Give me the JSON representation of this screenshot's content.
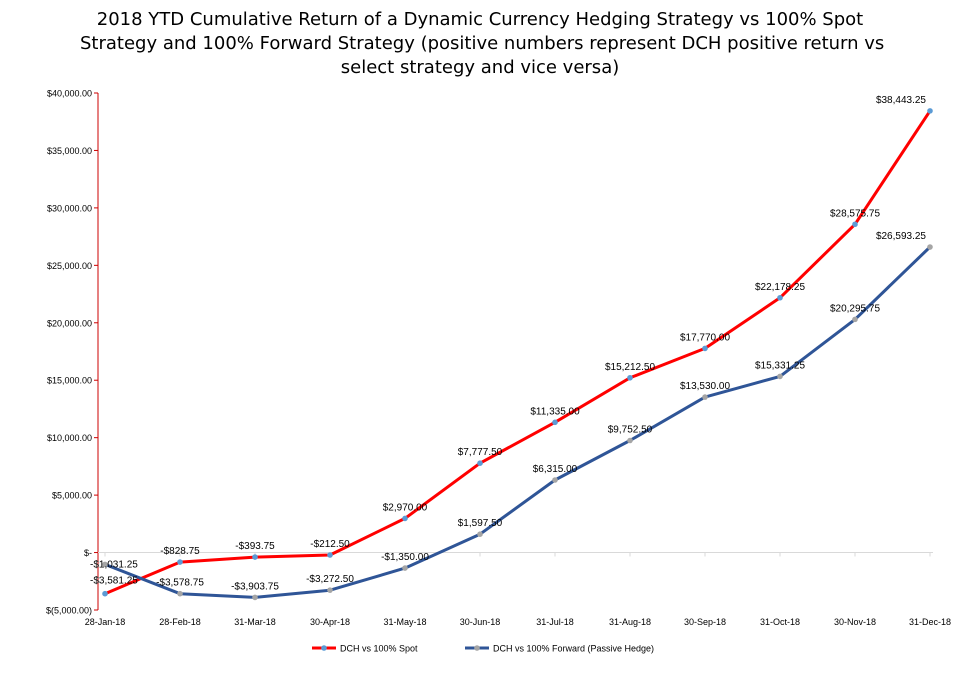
{
  "chart_data": {
    "type": "line",
    "title_lines": [
      "2018 YTD Cumulative Return of a Dynamic Currency Hedging Strategy vs 100% Spot",
      "Strategy and 100% Forward Strategy (positive numbers represent DCH positive return vs",
      "select strategy and vice versa)"
    ],
    "categories": [
      "28-Jan-18",
      "28-Feb-18",
      "31-Mar-18",
      "30-Apr-18",
      "31-May-18",
      "30-Jun-18",
      "31-Jul-18",
      "31-Aug-18",
      "30-Sep-18",
      "31-Oct-18",
      "30-Nov-18",
      "31-Dec-18"
    ],
    "ylim": [
      -5000,
      40000
    ],
    "yticks": [
      -5000,
      0,
      5000,
      10000,
      15000,
      20000,
      25000,
      30000,
      35000,
      40000
    ],
    "ytick_labels": [
      "$(5,000.00)",
      "$-",
      "$5,000.00",
      "$10,000.00",
      "$15,000.00",
      "$20,000.00",
      "$25,000.00",
      "$30,000.00",
      "$35,000.00",
      "$40,000.00"
    ],
    "series": [
      {
        "name": "DCH vs 100% Spot",
        "color": "#ff0000",
        "marker_color": "#5b9bd5",
        "values": [
          -3581.25,
          -828.75,
          -393.75,
          -212.5,
          2970,
          7777.5,
          11335,
          15212.5,
          17770,
          22178.25,
          28575.75,
          38443.25
        ],
        "labels": [
          "-$3,581.25",
          "-$828.75",
          "-$393.75",
          "-$212.50",
          "$2,970.00",
          "$7,777.50",
          "$11,335.00",
          "$15,212.50",
          "$17,770.00",
          "$22,178.25",
          "$28,575.75",
          "$38,443.25"
        ]
      },
      {
        "name": "DCH vs 100% Forward (Passive Hedge)",
        "color": "#2f5597",
        "marker_color": "#a5a5a5",
        "values": [
          -1031.25,
          -3578.75,
          -3903.75,
          -3272.5,
          -1350,
          1597.5,
          6315,
          9752.5,
          13530,
          15331.25,
          20295.75,
          26593.25
        ],
        "labels": [
          "-$1,031.25",
          "-$3,578.75",
          "-$3,903.75",
          "-$3,272.50",
          "-$1,350.00",
          "$1,597.50",
          "$6,315.00",
          "$9,752.50",
          "$13,530.00",
          "$15,331.25",
          "$20,295.75",
          "$26,593.25"
        ]
      }
    ],
    "legend_position": "bottom",
    "grid": false
  }
}
